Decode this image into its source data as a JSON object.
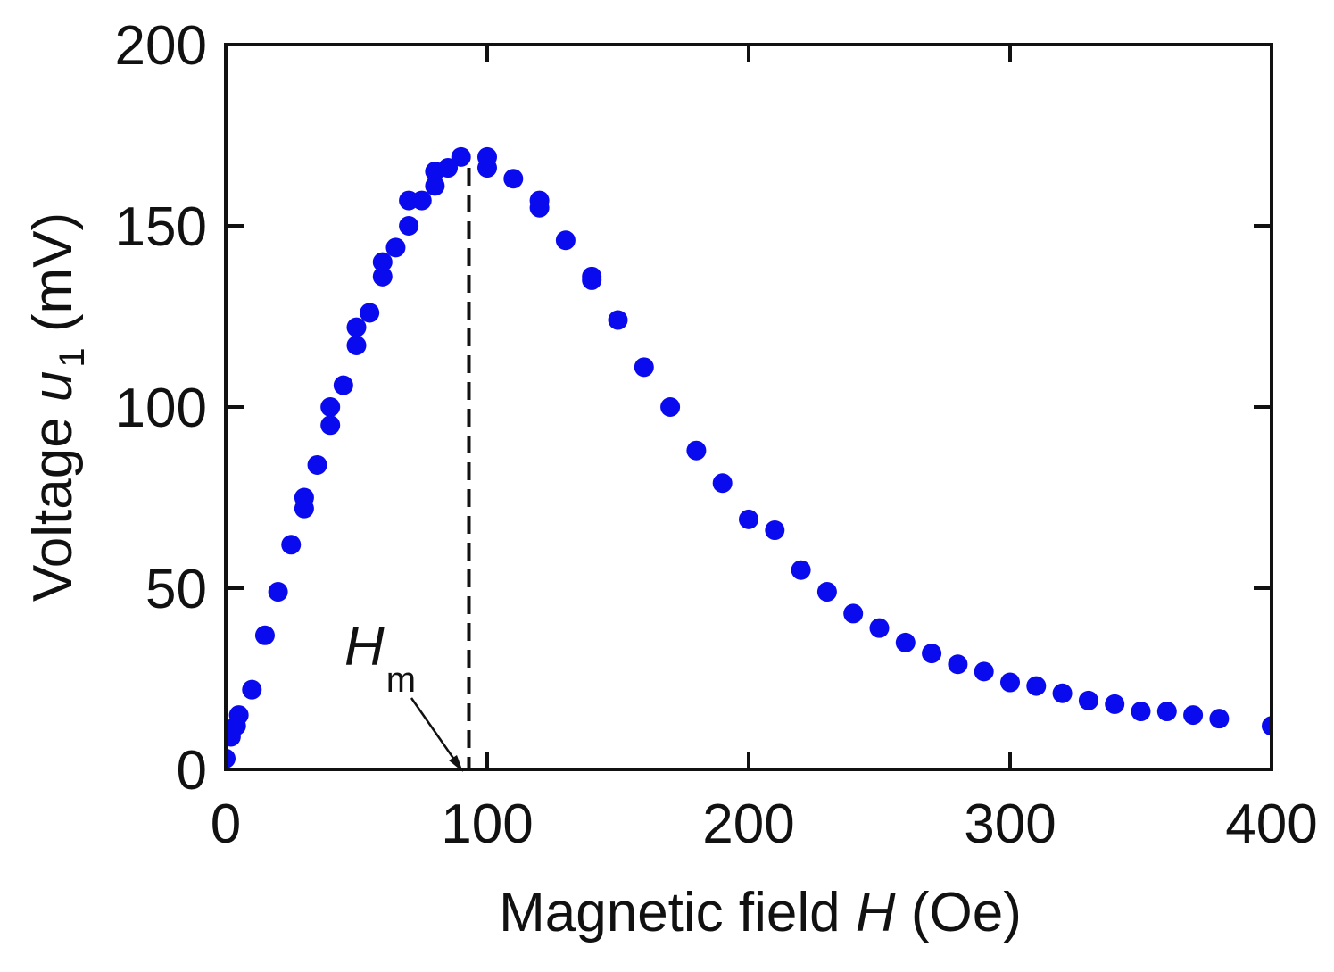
{
  "chart_data": {
    "type": "scatter",
    "title": "",
    "xlabel": {
      "prefix": "Magnetic field ",
      "var": "H",
      "suffix": " (Oe)"
    },
    "ylabel": {
      "prefix": "Voltage ",
      "var": "u",
      "sub": "1",
      "suffix": " (mV)"
    },
    "xlim": [
      0,
      400
    ],
    "ylim": [
      0,
      200
    ],
    "xticks": [
      0,
      100,
      200,
      300,
      400
    ],
    "yticks": [
      0,
      50,
      100,
      150,
      200
    ],
    "grid": false,
    "marker_color": "#0a0aee",
    "series": [
      {
        "name": "u1",
        "x": [
          0,
          2,
          4,
          5,
          10,
          15,
          20,
          25,
          30,
          30,
          35,
          40,
          40,
          45,
          50,
          50,
          55,
          60,
          60,
          65,
          70,
          70,
          75,
          80,
          80,
          85,
          90,
          100,
          100,
          110,
          120,
          120,
          130,
          140,
          140,
          150,
          160,
          170,
          180,
          190,
          200,
          210,
          220,
          230,
          240,
          250,
          260,
          270,
          280,
          290,
          300,
          310,
          320,
          330,
          340,
          350,
          360,
          370,
          380,
          400
        ],
        "y": [
          3,
          9,
          12,
          15,
          22,
          37,
          49,
          62,
          72,
          75,
          84,
          95,
          100,
          106,
          117,
          122,
          126,
          136,
          140,
          144,
          150,
          157,
          157,
          161,
          165,
          166,
          169,
          166,
          169,
          163,
          155,
          157,
          146,
          135,
          136,
          124,
          111,
          100,
          88,
          79,
          69,
          66,
          55,
          49,
          43,
          39,
          35,
          32,
          29,
          27,
          24,
          23,
          21,
          19,
          18,
          16,
          16,
          15,
          14,
          12
        ]
      }
    ],
    "annotations": [
      {
        "type": "vline",
        "x": 93,
        "style": "dashed",
        "color": "#111111"
      },
      {
        "type": "label",
        "var": "H",
        "sub": "m",
        "arrow_to_x": 93,
        "arrow_to_y": 0
      }
    ]
  }
}
